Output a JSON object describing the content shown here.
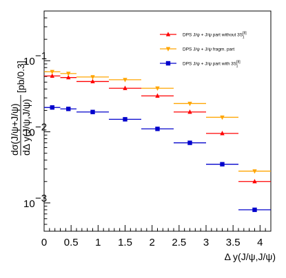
{
  "chart_data": {
    "type": "scatter",
    "title": "",
    "xlabel": "Δ y(J/ψ,J/ψ)",
    "ylabel_num": "dσ(J/ψ+J/ψ)",
    "ylabel_den": "dΔ y(J/ψ,J/ψ)",
    "ylabel_unit": "[pb/0.3]",
    "xlim": [
      0,
      4.2
    ],
    "ylim": [
      0.0004,
      0.5
    ],
    "yscale": "log",
    "grid": false,
    "legend_position": "top-right",
    "x_ticks": [
      0,
      0.5,
      1,
      1.5,
      2,
      2.5,
      3,
      3.5,
      4
    ],
    "x_tick_labels": [
      "0",
      "0.5",
      "1",
      "1.5",
      "2",
      "2.5",
      "3",
      "3.5",
      "4"
    ],
    "y_ticks": [
      0.001,
      0.01,
      0.1
    ],
    "y_tick_labels": [
      {
        "base": "10",
        "exp": "−3"
      },
      {
        "base": "10",
        "exp": "−2"
      },
      {
        "base": "10",
        "exp": "−1"
      }
    ],
    "series": [
      {
        "name": "DPS J/ψ + J/ψ part without 3S",
        "name_sup": "[8]",
        "name_sub": "1",
        "color": "#ff0000",
        "marker": "triangle-up",
        "x_low": [
          0,
          0.3,
          0.6,
          1.2,
          1.8,
          2.4,
          3.0,
          3.6
        ],
        "x_high": [
          0.3,
          0.6,
          1.2,
          1.8,
          2.4,
          3.0,
          3.6,
          4.2
        ],
        "y": [
          0.061,
          0.058,
          0.051,
          0.041,
          0.032,
          0.019,
          0.0095,
          0.002
        ]
      },
      {
        "name": "DPS J/ψ + J/ψ fragm. part",
        "color": "#ffa500",
        "marker": "triangle-down",
        "x_low": [
          0,
          0.3,
          0.6,
          1.2,
          1.8,
          2.4,
          3.0,
          3.6
        ],
        "x_high": [
          0.3,
          0.6,
          1.2,
          1.8,
          2.4,
          3.0,
          3.6,
          4.2
        ],
        "y": [
          0.07,
          0.066,
          0.059,
          0.054,
          0.041,
          0.025,
          0.016,
          0.0028
        ]
      },
      {
        "name": "DPS J/ψ + J/ψ part with 3S",
        "name_sup": "[8]",
        "name_sub": "1",
        "color": "#0000cc",
        "marker": "square",
        "x_low": [
          0,
          0.3,
          0.6,
          1.2,
          1.8,
          2.4,
          3.0,
          3.6
        ],
        "x_high": [
          0.3,
          0.6,
          1.2,
          1.8,
          2.4,
          3.0,
          3.6,
          4.2
        ],
        "y": [
          0.022,
          0.021,
          0.019,
          0.015,
          0.011,
          0.007,
          0.0035,
          0.0008
        ]
      }
    ]
  }
}
